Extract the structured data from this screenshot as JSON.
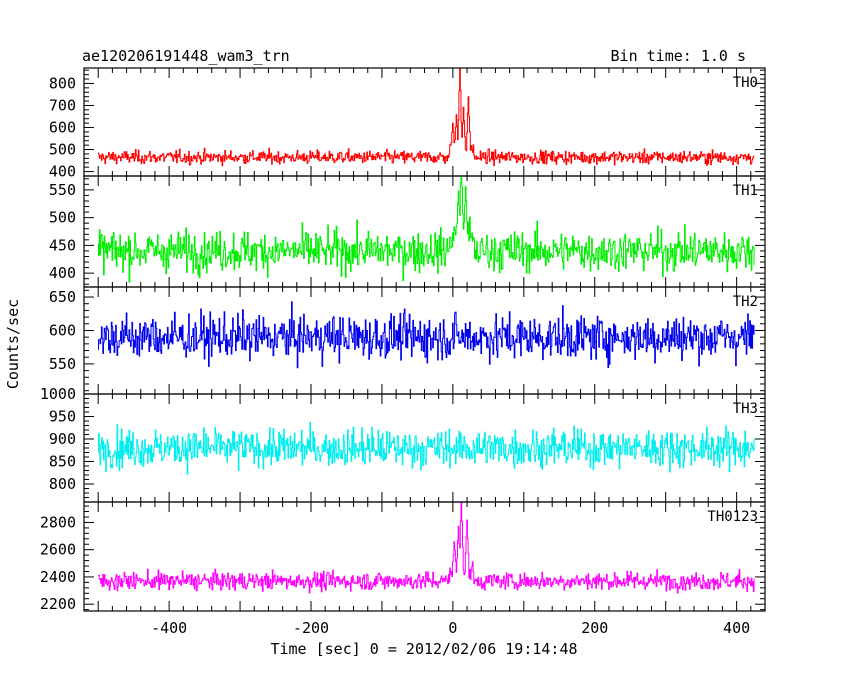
{
  "chart_data": {
    "type": "line",
    "title_left": "ae120206191448_wam3_trn",
    "title_right": "Bin time: 1.0 s",
    "xlabel": "Time [sec] 0 = 2012/02/06 19:14:48",
    "ylabel": "Counts/sec",
    "xlim": [
      -520,
      440
    ],
    "x_ticks": [
      -400,
      -200,
      0,
      200,
      400
    ],
    "x_range_data": [
      -500,
      425
    ],
    "panels": [
      {
        "name": "TH0",
        "color": "#ff0000",
        "ylim": [
          380,
          870
        ],
        "y_ticks": [
          400,
          500,
          600,
          700,
          800
        ],
        "baseline": 465,
        "noise": 25,
        "peaks": [
          {
            "t": 0,
            "value": 580
          },
          {
            "t": 5,
            "value": 620
          },
          {
            "t": 10,
            "value": 870
          },
          {
            "t": 15,
            "value": 650
          },
          {
            "t": 22,
            "value": 700
          }
        ]
      },
      {
        "name": "TH1",
        "color": "#00ee00",
        "ylim": [
          375,
          575
        ],
        "y_ticks": [
          400,
          450,
          500,
          550
        ],
        "baseline": 440,
        "noise": 30,
        "peaks": [
          {
            "t": 8,
            "value": 520
          },
          {
            "t": 12,
            "value": 575
          },
          {
            "t": 18,
            "value": 530
          }
        ]
      },
      {
        "name": "TH2",
        "color": "#0000ee",
        "ylim": [
          505,
          665
        ],
        "y_ticks": [
          550,
          600,
          650
        ],
        "baseline": 590,
        "noise": 28,
        "peaks": []
      },
      {
        "name": "TH3",
        "color": "#00eeee",
        "ylim": [
          760,
          1000
        ],
        "y_ticks": [
          800,
          850,
          900,
          950,
          1000
        ],
        "baseline": 880,
        "noise": 35,
        "peaks": []
      },
      {
        "name": "TH0123",
        "color": "#ff00ff",
        "ylim": [
          2150,
          2950
        ],
        "y_ticks": [
          2200,
          2400,
          2600,
          2800
        ],
        "baseline": 2370,
        "noise": 55,
        "peaks": [
          {
            "t": 2,
            "value": 2580
          },
          {
            "t": 8,
            "value": 2700
          },
          {
            "t": 12,
            "value": 2950
          },
          {
            "t": 20,
            "value": 2760
          }
        ]
      }
    ]
  }
}
